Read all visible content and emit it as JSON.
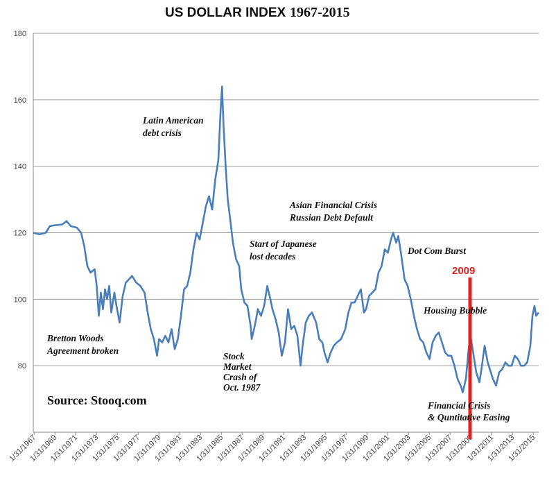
{
  "chart_data": {
    "type": "line",
    "title_main": "US DOLLAR INDEX",
    "title_years": "1967-2015",
    "ylim": [
      60,
      180
    ],
    "yticks": [
      "180",
      "160",
      "140",
      "120",
      "100",
      "80"
    ],
    "xticks": [
      "1/31/1967",
      "1/31/1969",
      "1/31/1971",
      "1/31/1973",
      "1/31/1975",
      "1/31/1977",
      "1/31/1979",
      "1/31/1981",
      "1/31/1983",
      "1/31/1985",
      "1/31/1987",
      "1/31/1989",
      "1/31/1991",
      "1/31/1993",
      "1/31/1995",
      "1/31/1997",
      "1/31/1999",
      "1/31/2001",
      "1/31/2003",
      "1/31/2005",
      "1/31/2007",
      "1/31/2009",
      "1/31/2011",
      "1/31/2013",
      "1/31/2015"
    ],
    "xrange": [
      1967.0,
      2015.6
    ],
    "grid": true,
    "series": [
      {
        "name": "US Dollar Index",
        "color": "#4a7ebb",
        "points": [
          [
            1967.0,
            120
          ],
          [
            1967.6,
            119.5
          ],
          [
            1968.2,
            120
          ],
          [
            1968.6,
            122
          ],
          [
            1969.2,
            122.3
          ],
          [
            1969.8,
            122.5
          ],
          [
            1970.2,
            123.5
          ],
          [
            1970.6,
            122
          ],
          [
            1971.2,
            121.5
          ],
          [
            1971.6,
            120
          ],
          [
            1971.9,
            116
          ],
          [
            1972.2,
            110
          ],
          [
            1972.5,
            108
          ],
          [
            1972.9,
            109
          ],
          [
            1973.1,
            104
          ],
          [
            1973.3,
            95
          ],
          [
            1973.5,
            102
          ],
          [
            1973.7,
            97
          ],
          [
            1973.9,
            103
          ],
          [
            1974.1,
            100
          ],
          [
            1974.3,
            104
          ],
          [
            1974.5,
            96
          ],
          [
            1974.8,
            102
          ],
          [
            1975.0,
            98
          ],
          [
            1975.3,
            93
          ],
          [
            1975.6,
            101
          ],
          [
            1975.9,
            105
          ],
          [
            1976.2,
            106
          ],
          [
            1976.5,
            107
          ],
          [
            1976.9,
            105
          ],
          [
            1977.3,
            104
          ],
          [
            1977.7,
            102
          ],
          [
            1978.0,
            96
          ],
          [
            1978.3,
            91
          ],
          [
            1978.6,
            88
          ],
          [
            1978.9,
            83
          ],
          [
            1979.1,
            88
          ],
          [
            1979.4,
            87
          ],
          [
            1979.7,
            89
          ],
          [
            1980.0,
            87
          ],
          [
            1980.3,
            91
          ],
          [
            1980.6,
            85
          ],
          [
            1980.9,
            88
          ],
          [
            1981.2,
            95
          ],
          [
            1981.5,
            103
          ],
          [
            1981.8,
            104
          ],
          [
            1982.1,
            108
          ],
          [
            1982.4,
            115
          ],
          [
            1982.7,
            120
          ],
          [
            1983.0,
            118
          ],
          [
            1983.3,
            123
          ],
          [
            1983.6,
            128
          ],
          [
            1983.9,
            131
          ],
          [
            1984.2,
            127
          ],
          [
            1984.5,
            136
          ],
          [
            1984.8,
            142
          ],
          [
            1985.0,
            156
          ],
          [
            1985.15,
            164
          ],
          [
            1985.3,
            152
          ],
          [
            1985.5,
            140
          ],
          [
            1985.7,
            130
          ],
          [
            1985.9,
            125
          ],
          [
            1986.2,
            117
          ],
          [
            1986.5,
            112
          ],
          [
            1986.8,
            110
          ],
          [
            1987.0,
            103
          ],
          [
            1987.3,
            99
          ],
          [
            1987.6,
            98
          ],
          [
            1987.9,
            92
          ],
          [
            1988.0,
            88
          ],
          [
            1988.3,
            92
          ],
          [
            1988.6,
            97
          ],
          [
            1988.9,
            95
          ],
          [
            1989.2,
            98
          ],
          [
            1989.5,
            104
          ],
          [
            1989.8,
            100
          ],
          [
            1990.0,
            97
          ],
          [
            1990.3,
            94
          ],
          [
            1990.6,
            90
          ],
          [
            1990.9,
            83
          ],
          [
            1991.2,
            87
          ],
          [
            1991.5,
            97
          ],
          [
            1991.8,
            91
          ],
          [
            1992.1,
            92
          ],
          [
            1992.4,
            89
          ],
          [
            1992.7,
            80
          ],
          [
            1992.9,
            86
          ],
          [
            1993.2,
            93
          ],
          [
            1993.5,
            95
          ],
          [
            1993.8,
            96
          ],
          [
            1994.2,
            93
          ],
          [
            1994.5,
            88
          ],
          [
            1994.8,
            87
          ],
          [
            1995.0,
            84
          ],
          [
            1995.3,
            81
          ],
          [
            1995.6,
            84
          ],
          [
            1995.9,
            86
          ],
          [
            1996.2,
            87
          ],
          [
            1996.6,
            88
          ],
          [
            1997.0,
            91
          ],
          [
            1997.3,
            96
          ],
          [
            1997.6,
            99
          ],
          [
            1997.9,
            99
          ],
          [
            1998.2,
            101
          ],
          [
            1998.5,
            103
          ],
          [
            1998.8,
            96
          ],
          [
            1999.0,
            97
          ],
          [
            1999.3,
            101
          ],
          [
            1999.6,
            102
          ],
          [
            1999.9,
            103
          ],
          [
            2000.2,
            108
          ],
          [
            2000.5,
            110
          ],
          [
            2000.8,
            115
          ],
          [
            2001.1,
            114
          ],
          [
            2001.4,
            118
          ],
          [
            2001.6,
            120
          ],
          [
            2001.9,
            117
          ],
          [
            2002.1,
            119
          ],
          [
            2002.4,
            113
          ],
          [
            2002.7,
            106
          ],
          [
            2003.0,
            104
          ],
          [
            2003.3,
            100
          ],
          [
            2003.6,
            95
          ],
          [
            2003.9,
            91
          ],
          [
            2004.2,
            88
          ],
          [
            2004.5,
            87
          ],
          [
            2004.8,
            84
          ],
          [
            2005.1,
            82
          ],
          [
            2005.4,
            87
          ],
          [
            2005.7,
            89
          ],
          [
            2006.0,
            90
          ],
          [
            2006.3,
            87
          ],
          [
            2006.6,
            84
          ],
          [
            2006.9,
            83
          ],
          [
            2007.2,
            83
          ],
          [
            2007.5,
            80
          ],
          [
            2007.8,
            76
          ],
          [
            2008.1,
            74
          ],
          [
            2008.3,
            72
          ],
          [
            2008.6,
            76
          ],
          [
            2008.9,
            86
          ],
          [
            2009.1,
            88
          ],
          [
            2009.3,
            84
          ],
          [
            2009.6,
            78
          ],
          [
            2009.9,
            75
          ],
          [
            2010.1,
            79
          ],
          [
            2010.4,
            86
          ],
          [
            2010.7,
            81
          ],
          [
            2010.9,
            79
          ],
          [
            2011.2,
            76
          ],
          [
            2011.5,
            74
          ],
          [
            2011.8,
            78
          ],
          [
            2012.1,
            79
          ],
          [
            2012.4,
            81
          ],
          [
            2012.7,
            80
          ],
          [
            2013.0,
            80
          ],
          [
            2013.3,
            83
          ],
          [
            2013.6,
            82
          ],
          [
            2013.9,
            80
          ],
          [
            2014.2,
            80
          ],
          [
            2014.5,
            81
          ],
          [
            2014.8,
            86
          ],
          [
            2015.0,
            95
          ],
          [
            2015.2,
            98
          ],
          [
            2015.35,
            95
          ],
          [
            2015.6,
            96
          ]
        ]
      }
    ],
    "marker": {
      "x": 2009.0,
      "label": "2009",
      "color": "#e0221f"
    },
    "annotations": [
      {
        "lines": [
          "Latin American",
          "debt crisis"
        ]
      },
      {
        "lines": [
          "Asian Financial Crisis",
          "Russian Debt Default"
        ]
      },
      {
        "lines": [
          "Start of Japanese",
          "lost decades"
        ]
      },
      {
        "lines": [
          "Dot Com Burst"
        ]
      },
      {
        "lines": [
          "Housing Bubble"
        ]
      },
      {
        "lines": [
          "Bretton Woods",
          "Agreement broken"
        ]
      },
      {
        "lines": [
          "Stock",
          "Market",
          "Crash of",
          "Oct. 1987"
        ]
      },
      {
        "lines": [
          "Financial Crisis",
          "& Quntitative Easing"
        ]
      }
    ],
    "source": "Source: Stooq.com"
  }
}
